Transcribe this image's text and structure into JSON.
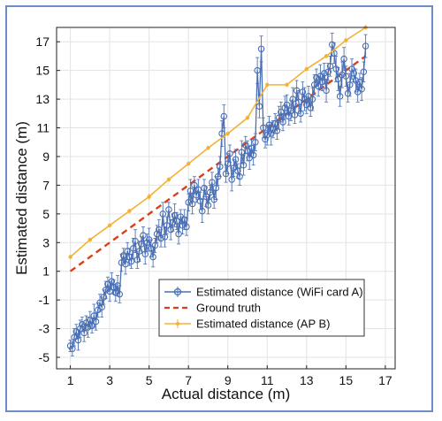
{
  "chart_data": {
    "type": "line",
    "title": "",
    "xlabel": "Actual distance (m)",
    "ylabel": "Estimated distance (m)",
    "xlim": [
      0.3,
      17.5
    ],
    "ylim": [
      -5.8,
      18
    ],
    "xticks": [
      1,
      3,
      5,
      7,
      9,
      11,
      13,
      15,
      17
    ],
    "yticks": [
      -5,
      -3,
      -1,
      1,
      3,
      5,
      7,
      9,
      11,
      13,
      15,
      17
    ],
    "grid": true,
    "legend_position": "lower-right",
    "series": [
      {
        "name": "Estimated distance (WiFi card A)",
        "color": "#4a6fb5",
        "style": "line-with-circles-and-errorbars",
        "x": [
          1.0,
          1.1,
          1.2,
          1.3,
          1.4,
          1.5,
          1.6,
          1.7,
          1.8,
          1.9,
          2.0,
          2.1,
          2.2,
          2.3,
          2.4,
          2.5,
          2.6,
          2.7,
          2.8,
          2.9,
          3.0,
          3.1,
          3.2,
          3.3,
          3.4,
          3.5,
          3.6,
          3.7,
          3.8,
          3.9,
          4.0,
          4.1,
          4.2,
          4.3,
          4.4,
          4.5,
          4.6,
          4.7,
          4.8,
          4.9,
          5.0,
          5.1,
          5.2,
          5.3,
          5.4,
          5.5,
          5.6,
          5.7,
          5.8,
          5.9,
          6.0,
          6.1,
          6.2,
          6.3,
          6.4,
          6.5,
          6.6,
          6.7,
          6.8,
          6.9,
          7.0,
          7.1,
          7.2,
          7.3,
          7.4,
          7.5,
          7.6,
          7.7,
          7.8,
          7.9,
          8.0,
          8.1,
          8.2,
          8.3,
          8.4,
          8.5,
          8.6,
          8.7,
          8.8,
          8.9,
          9.0,
          9.1,
          9.2,
          9.3,
          9.4,
          9.5,
          9.6,
          9.7,
          9.8,
          9.9,
          10.0,
          10.1,
          10.2,
          10.3,
          10.4,
          10.5,
          10.6,
          10.7,
          10.8,
          10.9,
          11.0,
          11.1,
          11.2,
          11.3,
          11.4,
          11.5,
          11.6,
          11.7,
          11.8,
          11.9,
          12.0,
          12.1,
          12.2,
          12.3,
          12.4,
          12.5,
          12.6,
          12.7,
          12.8,
          12.9,
          13.0,
          13.1,
          13.2,
          13.3,
          13.4,
          13.5,
          13.6,
          13.7,
          13.8,
          13.9,
          14.0,
          14.1,
          14.2,
          14.3,
          14.4,
          14.5,
          14.6,
          14.7,
          14.8,
          14.9,
          15.0,
          15.1,
          15.2,
          15.3,
          15.4,
          15.5,
          15.6,
          15.7,
          15.8,
          15.9,
          16.0
        ],
        "y": [
          -4.2,
          -4.4,
          -3.6,
          -3.2,
          -3.8,
          -3.0,
          -2.7,
          -3.3,
          -2.6,
          -2.9,
          -2.4,
          -2.8,
          -2.1,
          -2.5,
          -1.7,
          -1.2,
          -1.5,
          -0.8,
          -0.3,
          0.1,
          -0.4,
          0.3,
          -0.1,
          -0.5,
          0.0,
          -0.6,
          1.6,
          2.1,
          1.5,
          2.4,
          2.0,
          1.7,
          2.6,
          3.1,
          1.8,
          2.4,
          2.9,
          3.5,
          2.2,
          3.0,
          3.2,
          2.6,
          2.0,
          2.8,
          3.6,
          3.9,
          3.3,
          5.0,
          3.4,
          4.2,
          5.3,
          3.9,
          4.4,
          4.9,
          4.5,
          3.6,
          4.8,
          4.2,
          4.6,
          4.1,
          5.8,
          6.6,
          5.7,
          7.0,
          6.3,
          6.7,
          5.9,
          5.2,
          6.8,
          6.2,
          5.6,
          6.5,
          7.2,
          6.0,
          6.8,
          7.6,
          8.3,
          10.6,
          11.8,
          7.8,
          8.5,
          9.2,
          7.4,
          8.2,
          8.8,
          8.0,
          7.6,
          9.3,
          8.4,
          9.8,
          9.4,
          8.9,
          9.6,
          9.1,
          10.0,
          15.0,
          12.5,
          16.5,
          11.0,
          10.2,
          10.5,
          11.2,
          10.6,
          10.9,
          11.3,
          10.8,
          11.7,
          12.1,
          11.4,
          12.4,
          12.6,
          11.8,
          12.2,
          13.0,
          11.9,
          13.6,
          12.8,
          12.0,
          13.5,
          13.0,
          12.6,
          13.2,
          12.4,
          13.0,
          14.0,
          14.5,
          13.9,
          14.6,
          14.2,
          14.8,
          13.6,
          14.9,
          15.3,
          16.8,
          16.2,
          15.1,
          14.4,
          13.2,
          14.7,
          15.8,
          14.6,
          13.4,
          14.0,
          15.1,
          14.8,
          14.3,
          13.5,
          14.2,
          13.7,
          14.9,
          16.7
        ],
        "err": [
          0.4,
          0.5,
          0.6,
          0.5,
          0.7,
          0.6,
          0.5,
          0.6,
          0.5,
          0.7,
          0.6,
          0.5,
          0.8,
          0.6,
          0.5,
          0.6,
          0.7,
          0.5,
          0.6,
          0.5,
          0.7,
          0.6,
          0.5,
          0.6,
          0.7,
          0.6,
          0.6,
          0.5,
          0.7,
          0.6,
          0.6,
          0.5,
          0.7,
          0.8,
          0.6,
          0.7,
          0.5,
          0.6,
          0.7,
          0.6,
          0.8,
          0.6,
          0.7,
          0.5,
          0.6,
          0.7,
          0.6,
          0.8,
          0.7,
          0.6,
          0.5,
          0.7,
          0.6,
          0.8,
          0.6,
          0.7,
          0.5,
          0.6,
          0.7,
          0.6,
          0.6,
          0.8,
          0.7,
          0.6,
          0.5,
          0.7,
          0.6,
          0.8,
          0.6,
          0.7,
          0.6,
          0.5,
          0.7,
          0.6,
          0.8,
          0.6,
          0.7,
          0.9,
          0.8,
          0.6,
          0.7,
          0.6,
          0.8,
          0.6,
          0.7,
          0.5,
          0.6,
          0.8,
          0.7,
          0.6,
          0.7,
          0.8,
          0.6,
          0.7,
          0.6,
          0.9,
          0.8,
          0.9,
          0.7,
          0.6,
          0.7,
          0.6,
          0.8,
          0.6,
          0.7,
          0.6,
          0.8,
          0.7,
          0.6,
          0.8,
          0.7,
          0.6,
          0.7,
          0.8,
          0.6,
          0.7,
          0.8,
          0.6,
          0.7,
          0.8,
          0.6,
          0.7,
          0.6,
          0.8,
          0.7,
          0.6,
          0.7,
          0.8,
          0.6,
          0.7,
          0.8,
          0.6,
          0.7,
          0.8,
          0.7,
          0.9,
          0.8,
          0.7,
          0.9,
          0.8,
          0.7,
          0.6,
          0.8,
          0.7,
          0.6,
          0.8,
          0.7,
          0.6,
          0.8,
          0.7,
          0.8
        ]
      },
      {
        "name": "Ground truth",
        "color": "#d9401a",
        "style": "dashed",
        "x": [
          1,
          16
        ],
        "y": [
          1,
          16
        ]
      },
      {
        "name": "Estimated distance (AP B)",
        "color": "#f2b233",
        "style": "line-with-points-and-errorbars",
        "x": [
          1,
          2,
          3,
          4,
          5,
          6,
          7,
          8,
          9,
          10,
          11,
          12,
          13,
          14,
          15,
          16
        ],
        "y": [
          2.0,
          3.2,
          4.2,
          5.2,
          6.2,
          7.4,
          8.5,
          9.6,
          10.6,
          11.7,
          14.0,
          14.0,
          15.1,
          16.0,
          17.1,
          18.0
        ],
        "err": [
          0.15,
          0.15,
          0.15,
          0.15,
          0.2,
          0.15,
          0.15,
          0.15,
          0.15,
          0.15,
          0.15,
          0.15,
          0.15,
          0.15,
          0.15,
          0.15
        ]
      }
    ]
  }
}
